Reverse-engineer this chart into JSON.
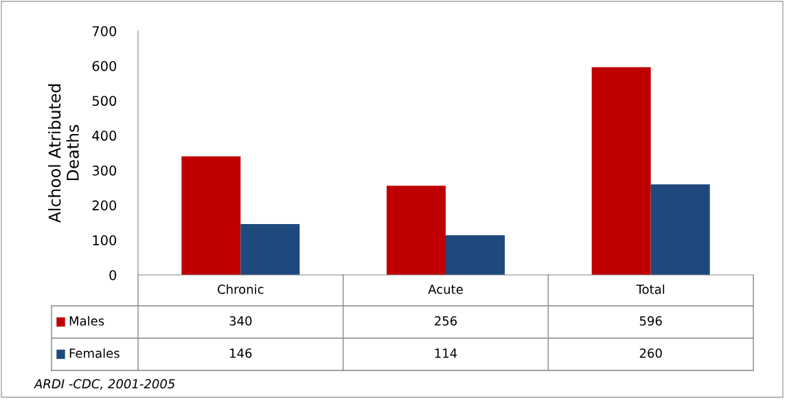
{
  "chart_data": {
    "type": "bar",
    "categories": [
      "Chronic",
      "Acute",
      "Total"
    ],
    "series": [
      {
        "name": "Males",
        "color": "#c00000",
        "values": [
          340,
          256,
          596
        ]
      },
      {
        "name": "Females",
        "color": "#1f497d",
        "values": [
          146,
          114,
          260
        ]
      }
    ],
    "ylabel": "Alchool Atributed\nDeaths",
    "ylim": [
      0,
      700
    ],
    "yticks": [
      0,
      100,
      200,
      300,
      400,
      500,
      600,
      700
    ],
    "grid": false,
    "legend": "bottom",
    "data_labels": true,
    "annotations": [
      "ARDI -CDC, 2001-2005"
    ]
  }
}
